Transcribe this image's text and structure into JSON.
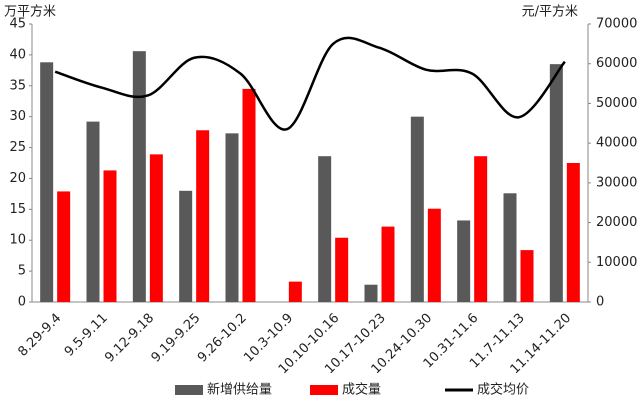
{
  "chart_data": {
    "type": "bar-line",
    "y_label": "万平方米",
    "y2_label": "元/平方米",
    "categories": [
      "8.29-9.4",
      "9.5-9.11",
      "9.12-9.18",
      "9.19-9.25",
      "9.26-10.2",
      "10.3-10.9",
      "10.10-10.16",
      "10.17-10.23",
      "10.24-10.30",
      "10.31-11.6",
      "11.7-11.13",
      "11.14-11.20"
    ],
    "series": [
      {
        "name": "新增供给量",
        "type": "bar",
        "color": "#595959",
        "values": [
          38.8,
          29.2,
          40.6,
          18,
          27.3,
          0,
          23.6,
          2.8,
          30,
          13.2,
          17.6,
          38.5
        ]
      },
      {
        "name": "成交量",
        "type": "bar",
        "color": "#ff0000",
        "values": [
          17.9,
          21.3,
          23.9,
          27.8,
          34.5,
          3.3,
          10.4,
          12.2,
          15.1,
          23.6,
          8.4,
          22.5
        ]
      },
      {
        "name": "成交均价",
        "type": "line",
        "axis": "y2",
        "color": "#000000",
        "values": [
          58000,
          54000,
          52000,
          61500,
          57500,
          43500,
          65000,
          64000,
          58500,
          57500,
          46500,
          60500
        ]
      }
    ],
    "ylim": [
      0,
      45
    ],
    "yticks": [
      0,
      5,
      10,
      15,
      20,
      25,
      30,
      35,
      40,
      45
    ],
    "y2lim": [
      0,
      70000
    ],
    "y2ticks": [
      0,
      10000,
      20000,
      30000,
      40000,
      50000,
      60000,
      70000
    ],
    "legend": "bottom"
  }
}
